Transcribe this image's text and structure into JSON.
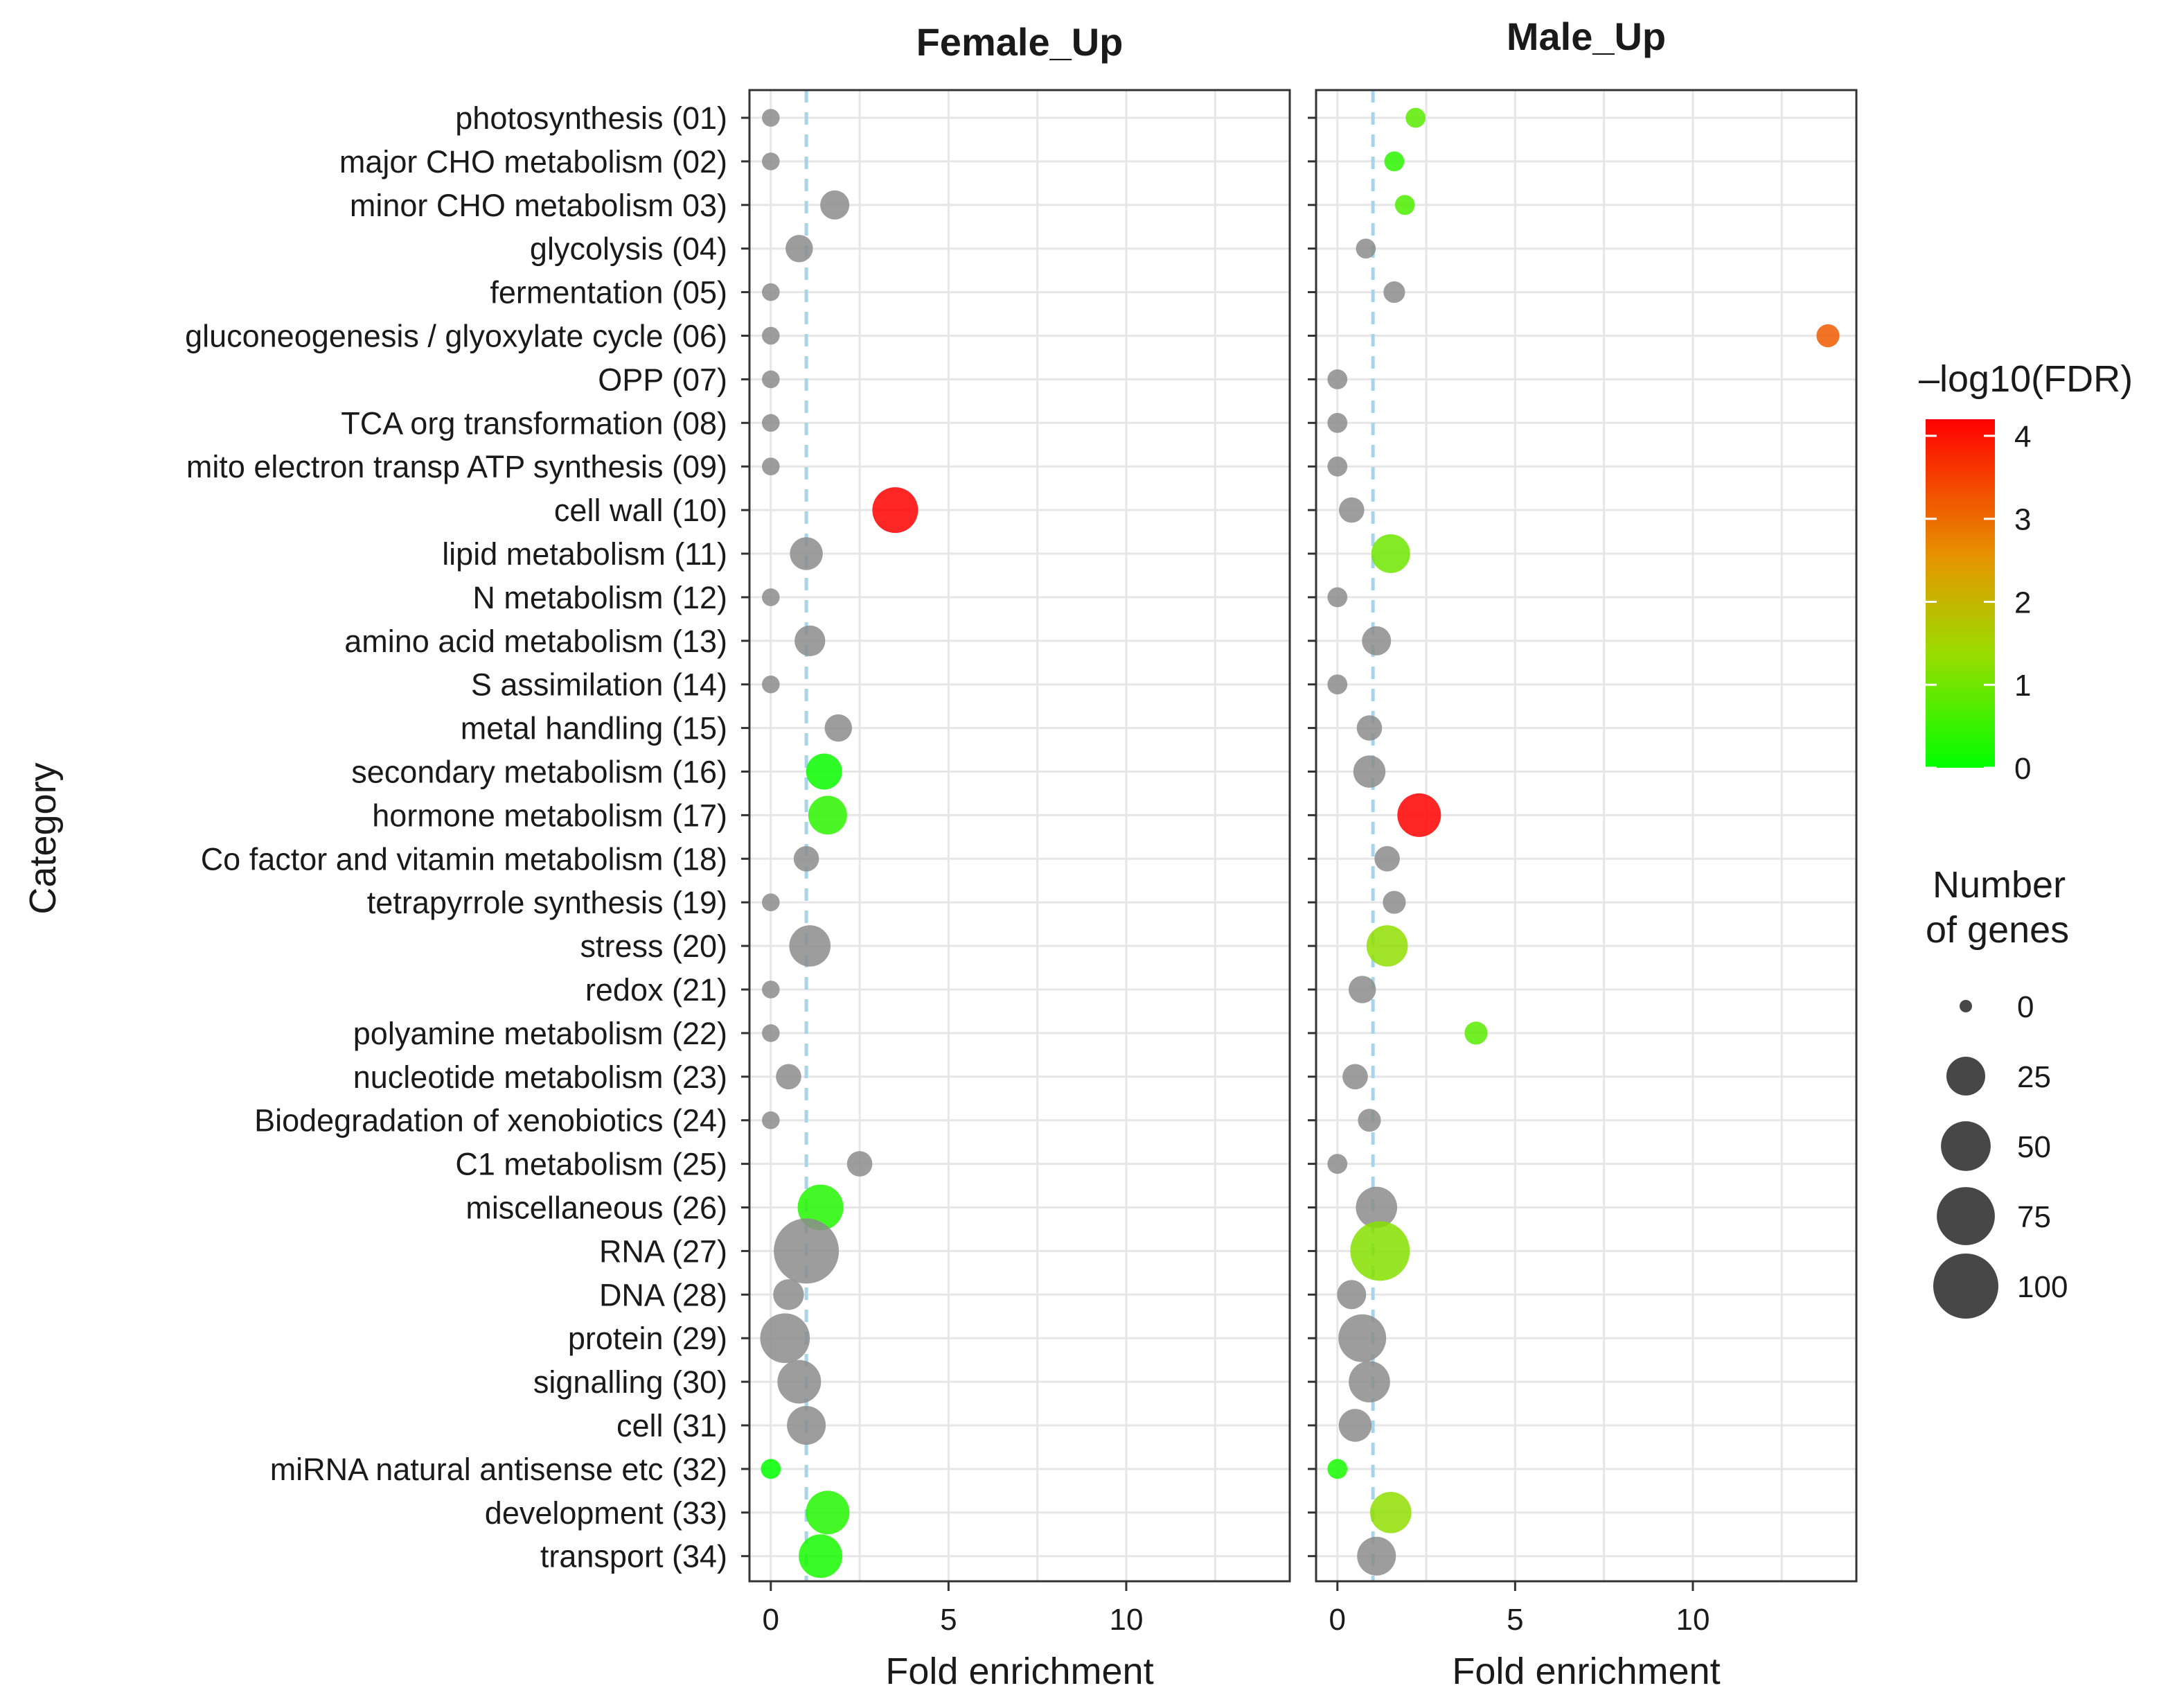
{
  "chart_data": {
    "type": "scatter",
    "title": "",
    "xlabel": "Fold enrichment",
    "ylabel": "Category",
    "xlim": [
      -0.6,
      14.6
    ],
    "xticks": [
      0,
      5,
      10
    ],
    "reference_line_x": 1,
    "grid": true,
    "legend_position": "right",
    "categories": [
      "photosynthesis (01)",
      "major CHO metabolism (02)",
      "minor CHO metabolism 03)",
      "glycolysis (04)",
      "fermentation (05)",
      "gluconeogenesis / glyoxylate cycle (06)",
      "OPP (07)",
      "TCA org transformation (08)",
      "mito electron transp ATP synthesis (09)",
      "cell wall (10)",
      "lipid metabolism (11)",
      "N metabolism (12)",
      "amino acid metabolism (13)",
      "S assimilation (14)",
      "metal handling (15)",
      "secondary metabolism (16)",
      "hormone metabolism (17)",
      "Co factor and vitamin metabolism (18)",
      "tetrapyrrole synthesis (19)",
      "stress (20)",
      "redox (21)",
      "polyamine metabolism (22)",
      "nucleotide metabolism (23)",
      "Biodegradation of xenobiotics (24)",
      "C1 metabolism (25)",
      "miscellaneous (26)",
      "RNA (27)",
      "DNA (28)",
      "protein (29)",
      "signalling (30)",
      "cell (31)",
      "miRNA natural antisense etc (32)",
      "development (33)",
      "transport (34)"
    ],
    "series": [
      {
        "name": "Female_Up",
        "fold_enrichment": [
          0,
          0,
          1.8,
          0.8,
          0,
          0,
          0,
          0,
          0,
          3.5,
          1,
          0,
          1.1,
          0,
          1.9,
          1.5,
          1.6,
          1,
          0,
          1.1,
          0,
          0,
          0.5,
          0,
          2.5,
          1.4,
          1,
          0.5,
          0.4,
          0.8,
          1,
          0,
          1.6,
          1.4
        ],
        "neg_log10_fdr": [
          null,
          null,
          null,
          null,
          null,
          null,
          null,
          null,
          null,
          4.2,
          null,
          null,
          null,
          null,
          null,
          0.1,
          0.4,
          null,
          null,
          null,
          null,
          null,
          null,
          null,
          null,
          0.3,
          null,
          null,
          null,
          null,
          null,
          0,
          0.3,
          0.2
        ],
        "gene_count": [
          1,
          1,
          10,
          8,
          1,
          1,
          1,
          1,
          1,
          40,
          15,
          1,
          12,
          1,
          8,
          20,
          25,
          6,
          1,
          30,
          1,
          1,
          6,
          1,
          6,
          40,
          100,
          12,
          50,
          35,
          25,
          2,
          35,
          35
        ]
      },
      {
        "name": "Male_Up",
        "fold_enrichment": [
          2.2,
          1.6,
          1.9,
          0.8,
          1.6,
          13.8,
          0,
          0,
          0,
          0.4,
          1.5,
          0,
          1.1,
          0,
          0.9,
          0.9,
          2.3,
          1.4,
          1.6,
          1.4,
          0.7,
          3.9,
          0.5,
          0.9,
          0,
          1.1,
          1.2,
          0.4,
          0.7,
          0.9,
          0.5,
          0,
          1.5,
          1.1
        ],
        "neg_log10_fdr": [
          0.8,
          0.4,
          0.7,
          null,
          null,
          3.2,
          null,
          null,
          null,
          null,
          1,
          null,
          null,
          null,
          null,
          null,
          4.2,
          null,
          null,
          1.3,
          null,
          0.8,
          null,
          null,
          null,
          null,
          1.2,
          null,
          null,
          null,
          null,
          0.2,
          1.3,
          null
        ],
        "gene_count": [
          2,
          2,
          2,
          2,
          3,
          4,
          2,
          2,
          2,
          6,
          25,
          2,
          10,
          2,
          6,
          14,
          35,
          6,
          4,
          30,
          8,
          4,
          6,
          4,
          2,
          30,
          80,
          10,
          45,
          30,
          15,
          2,
          30,
          25
        ]
      }
    ],
    "legend": {
      "color_title": "–log10(FDR)",
      "color_min": 0,
      "color_max": 4.2,
      "color_ticks": [
        0,
        1,
        2,
        3,
        4
      ],
      "color_low": "#00ff00",
      "color_high": "#ff0000",
      "size_title_line1": "Number",
      "size_title_line2": "of genes",
      "size_values": [
        0,
        25,
        50,
        75,
        100
      ]
    },
    "na_color": "#8c8c8c"
  }
}
